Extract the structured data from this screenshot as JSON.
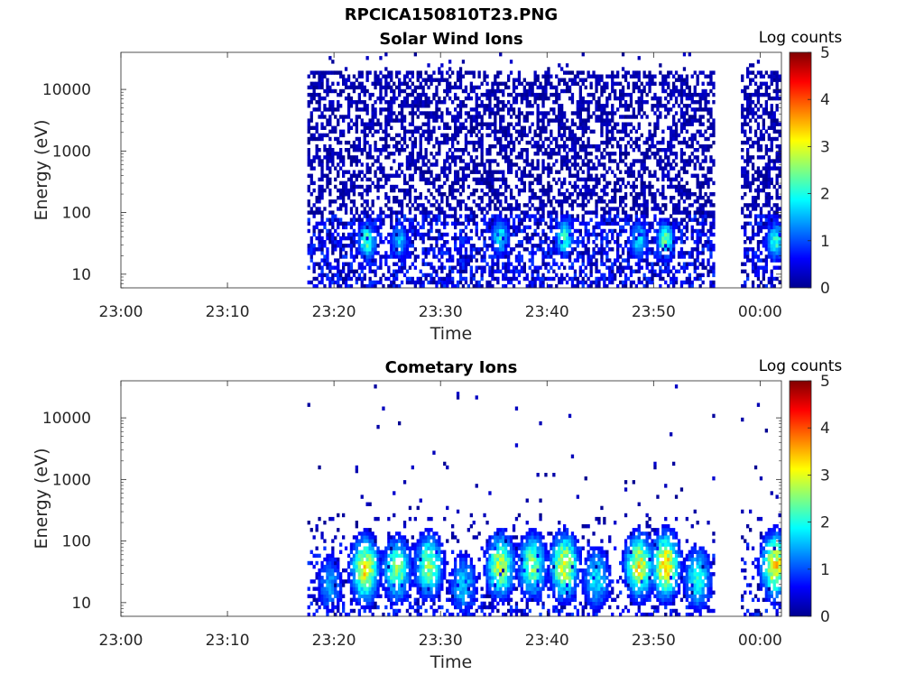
{
  "figure": {
    "title": "RPCICA150810T23.PNG"
  },
  "chart_data": [
    {
      "type": "heatmap",
      "title": "Solar Wind Ions",
      "xlabel": "Time",
      "ylabel": "Energy (eV)",
      "x_ticks": [
        "23:00",
        "23:10",
        "23:20",
        "23:30",
        "23:40",
        "23:50",
        "00:00"
      ],
      "y_ticks": [
        "10",
        "100",
        "1000",
        "10000"
      ],
      "y_scale": "log",
      "ylim": [
        6,
        40000
      ],
      "xlim_minutes": [
        0,
        62
      ],
      "colorbar": {
        "label": "Log counts",
        "ticks": [
          "0",
          "1",
          "2",
          "3",
          "4",
          "5"
        ],
        "range": [
          0,
          5
        ]
      },
      "data_intervals_minutes": [
        [
          17.5,
          55.6
        ],
        [
          58.2,
          61.9
        ]
      ],
      "character": "sparse low-count noise at all energies up to ~20000 eV, moderate counts (log ~1-2.5) near 20-50 eV",
      "peaks": [
        {
          "time_min": 23,
          "energy_eV": 35,
          "log_counts": 2.4
        },
        {
          "time_min": 26,
          "energy_eV": 35,
          "log_counts": 1.7
        },
        {
          "time_min": 35.5,
          "energy_eV": 40,
          "log_counts": 2.0
        },
        {
          "time_min": 41.5,
          "energy_eV": 40,
          "log_counts": 2.3
        },
        {
          "time_min": 48.5,
          "energy_eV": 35,
          "log_counts": 2.0
        },
        {
          "time_min": 51.0,
          "energy_eV": 35,
          "log_counts": 2.5
        },
        {
          "time_min": 61.3,
          "energy_eV": 35,
          "log_counts": 2.3
        }
      ]
    },
    {
      "type": "heatmap",
      "title": "Cometary Ions",
      "xlabel": "Time",
      "ylabel": "Energy (eV)",
      "x_ticks": [
        "23:00",
        "23:10",
        "23:20",
        "23:30",
        "23:40",
        "23:50",
        "00:00"
      ],
      "y_ticks": [
        "10",
        "100",
        "1000",
        "10000"
      ],
      "y_scale": "log",
      "ylim": [
        6,
        40000
      ],
      "xlim_minutes": [
        0,
        62
      ],
      "colorbar": {
        "label": "Log counts",
        "ticks": [
          "0",
          "1",
          "2",
          "3",
          "4",
          "5"
        ],
        "range": [
          0,
          5
        ]
      },
      "data_intervals_minutes": [
        [
          17.5,
          55.6
        ],
        [
          58.2,
          61.9
        ]
      ],
      "character": "periodic bursts from ~10 eV up to ~300 eV, peak log counts ~3.5 near 30-40 eV, rare isolated counts up to ~40000 eV",
      "peaks": [
        {
          "time_min": 19.5,
          "energy_eV": 20,
          "log_counts": 1.5
        },
        {
          "time_min": 22.8,
          "energy_eV": 35,
          "log_counts": 3.3
        },
        {
          "time_min": 25.8,
          "energy_eV": 35,
          "log_counts": 2.7
        },
        {
          "time_min": 28.8,
          "energy_eV": 40,
          "log_counts": 2.8
        },
        {
          "time_min": 32.0,
          "energy_eV": 20,
          "log_counts": 1.8
        },
        {
          "time_min": 35.5,
          "energy_eV": 40,
          "log_counts": 3.0
        },
        {
          "time_min": 38.5,
          "energy_eV": 40,
          "log_counts": 2.7
        },
        {
          "time_min": 41.5,
          "energy_eV": 40,
          "log_counts": 3.3
        },
        {
          "time_min": 44.5,
          "energy_eV": 25,
          "log_counts": 2.0
        },
        {
          "time_min": 48.5,
          "energy_eV": 40,
          "log_counts": 3.3
        },
        {
          "time_min": 51.0,
          "energy_eV": 40,
          "log_counts": 3.6
        },
        {
          "time_min": 54.0,
          "energy_eV": 25,
          "log_counts": 2.2
        },
        {
          "time_min": 61.3,
          "energy_eV": 40,
          "log_counts": 3.4
        }
      ]
    }
  ]
}
